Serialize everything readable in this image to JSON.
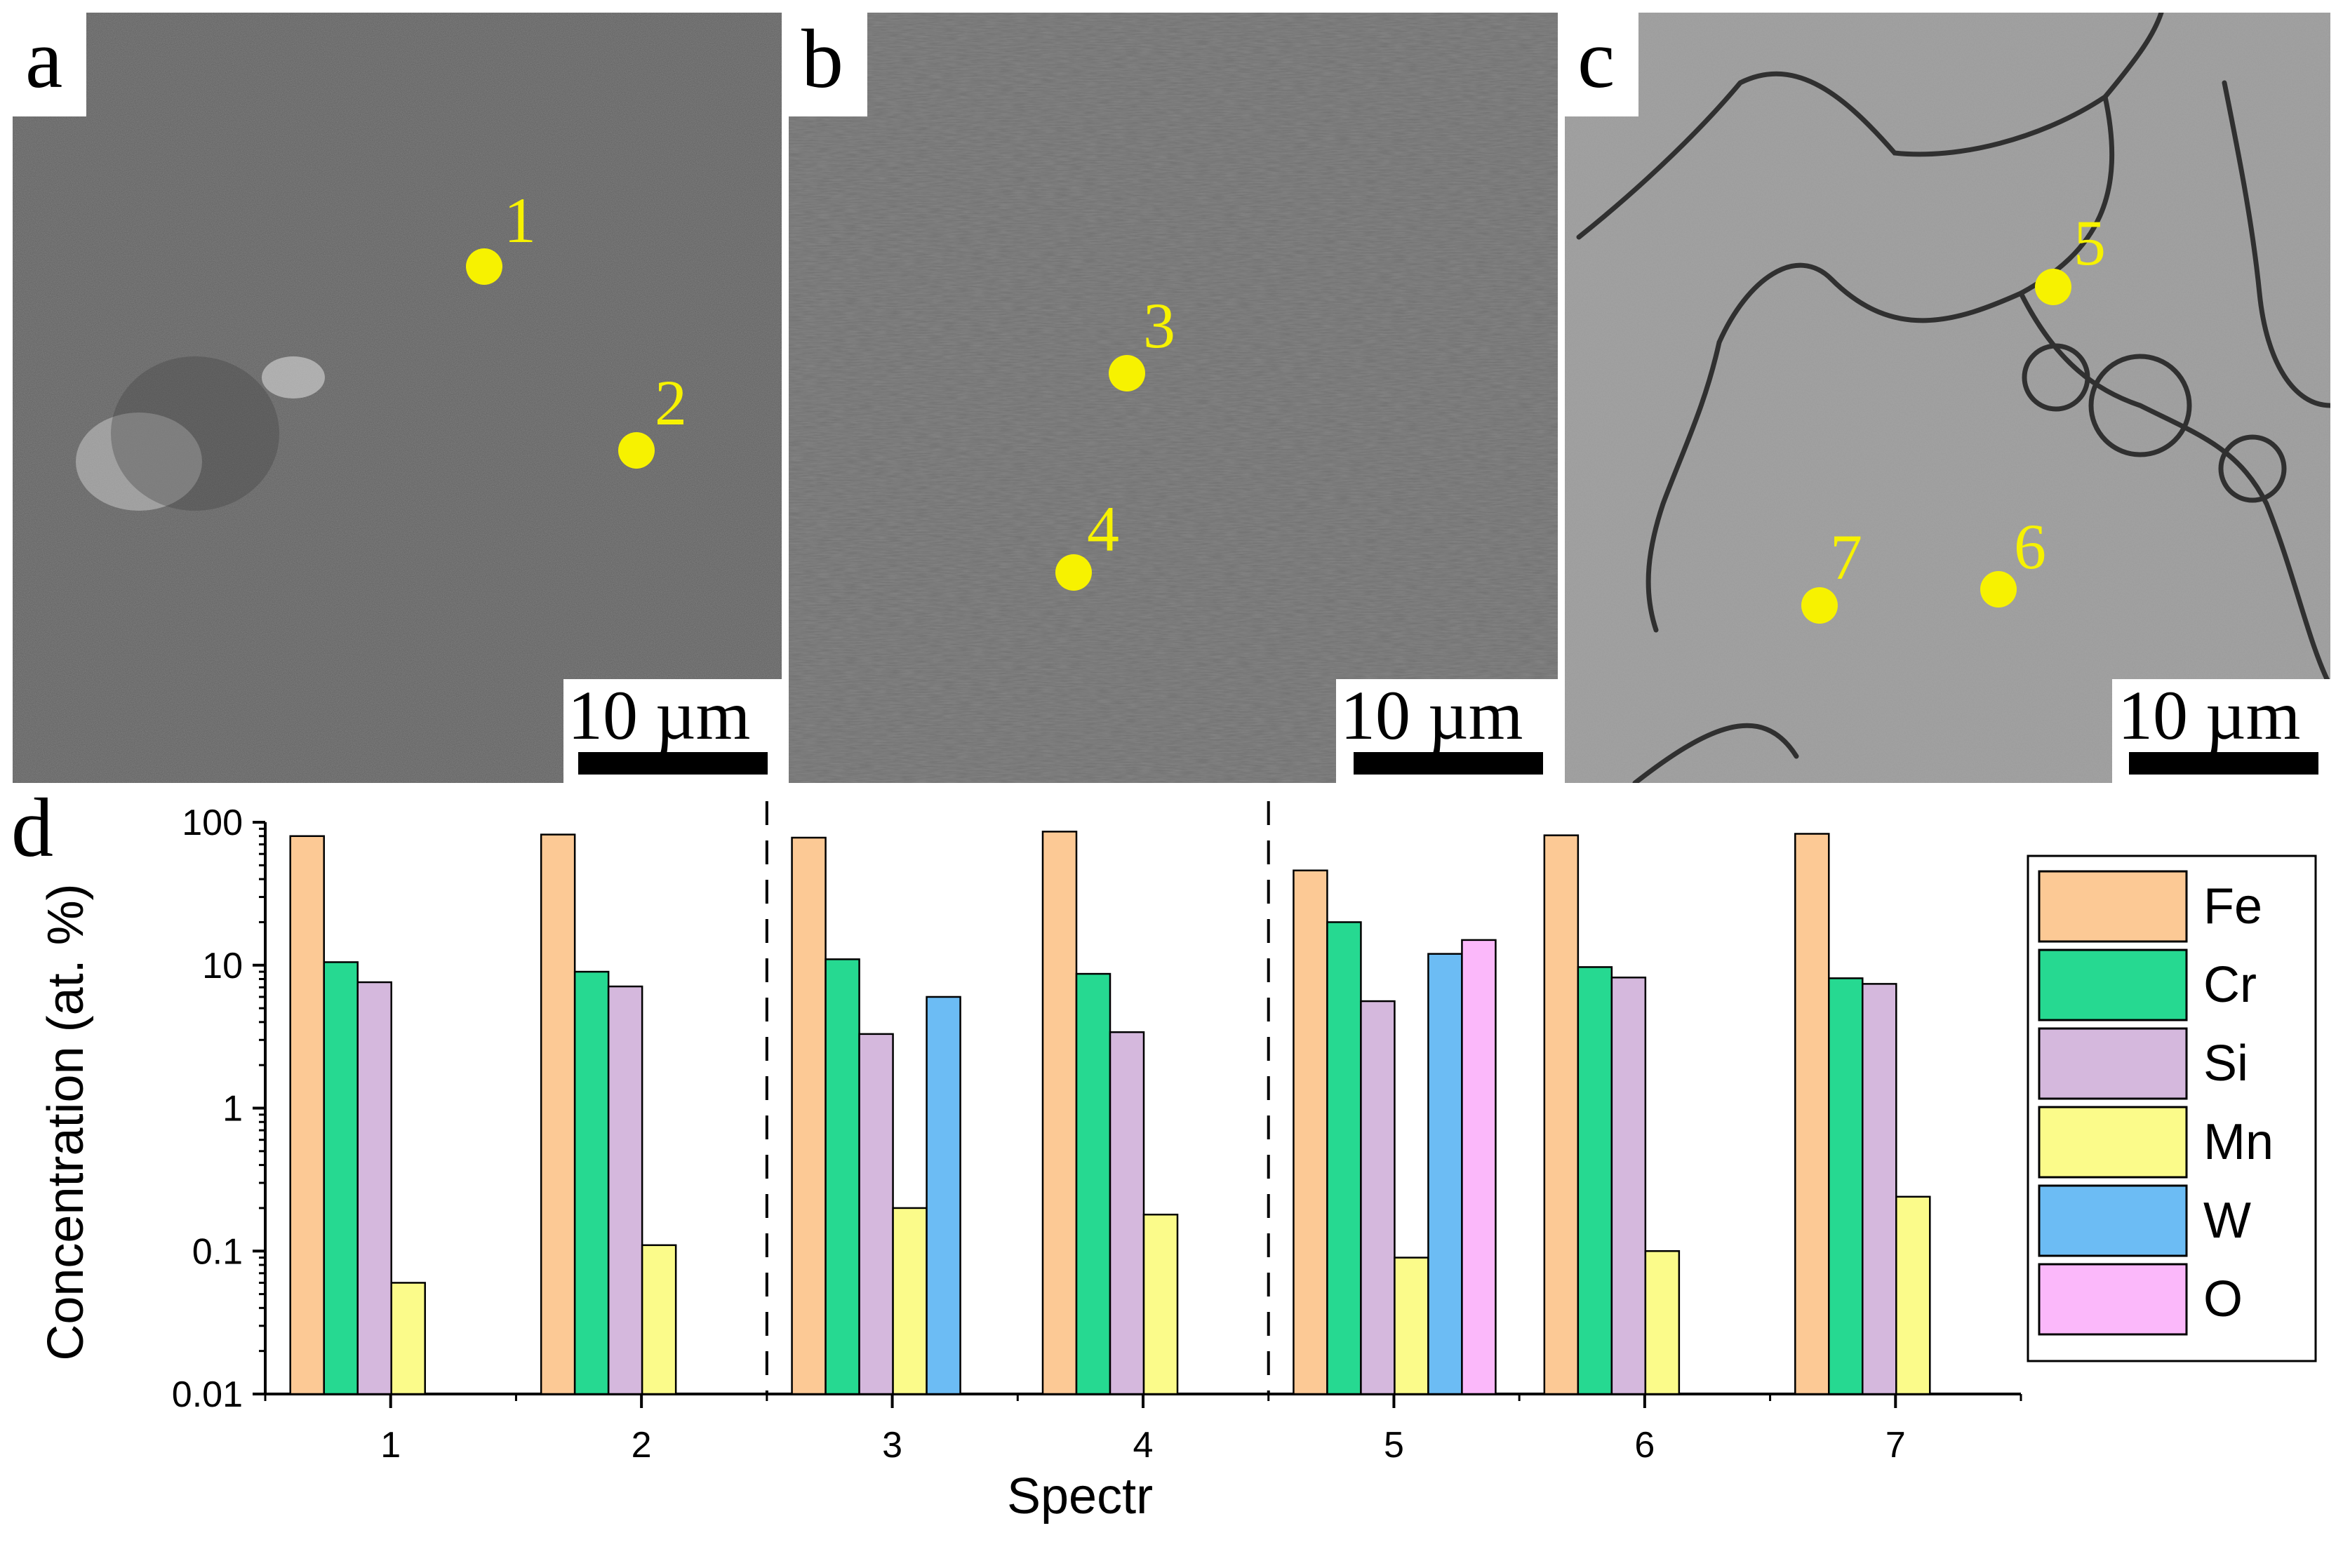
{
  "panels": [
    {
      "label": "a",
      "scale": "10 µm",
      "tone": "#5f5f5f",
      "points": [
        {
          "num": "1"
        },
        {
          "num": "2"
        }
      ]
    },
    {
      "label": "b",
      "scale": "10 µm",
      "tone": "#6e6e6e",
      "points": [
        {
          "num": "3"
        },
        {
          "num": "4"
        }
      ]
    },
    {
      "label": "c",
      "scale": "10 µm",
      "tone": "#9a9a9a",
      "points": [
        {
          "num": "5"
        },
        {
          "num": "6"
        },
        {
          "num": "7"
        }
      ]
    }
  ],
  "chart_label": "d",
  "chart_data": {
    "type": "bar",
    "xlabel": "Spectr",
    "ylabel": "Concentration (at. %)",
    "yscale": "log",
    "ylim": [
      0.01,
      100
    ],
    "yticks": [
      "0.01",
      "0.1",
      "1",
      "10",
      "100"
    ],
    "categories": [
      "1",
      "2",
      "3",
      "4",
      "5",
      "6",
      "7"
    ],
    "group_separators_after": [
      "2",
      "4"
    ],
    "legend_position": "right",
    "series": [
      {
        "name": "Fe",
        "color": "#fcc995",
        "values": [
          80,
          82,
          78,
          86,
          46,
          81,
          83
        ]
      },
      {
        "name": "Cr",
        "color": "#26d991",
        "values": [
          10.5,
          9,
          11,
          8.7,
          20,
          9.7,
          8.1
        ]
      },
      {
        "name": "Si",
        "color": "#d5b8dd",
        "values": [
          7.6,
          7.1,
          3.3,
          3.4,
          5.6,
          8.2,
          7.4
        ]
      },
      {
        "name": "Mn",
        "color": "#fbfb8a",
        "values": [
          0.06,
          0.11,
          0.2,
          0.18,
          0.09,
          0.1,
          0.24
        ]
      },
      {
        "name": "W",
        "color": "#6cbcf4",
        "values": [
          null,
          null,
          6,
          null,
          12,
          null,
          null
        ]
      },
      {
        "name": "O",
        "color": "#fbb8fa",
        "values": [
          null,
          null,
          null,
          null,
          15,
          null,
          null
        ]
      }
    ]
  }
}
